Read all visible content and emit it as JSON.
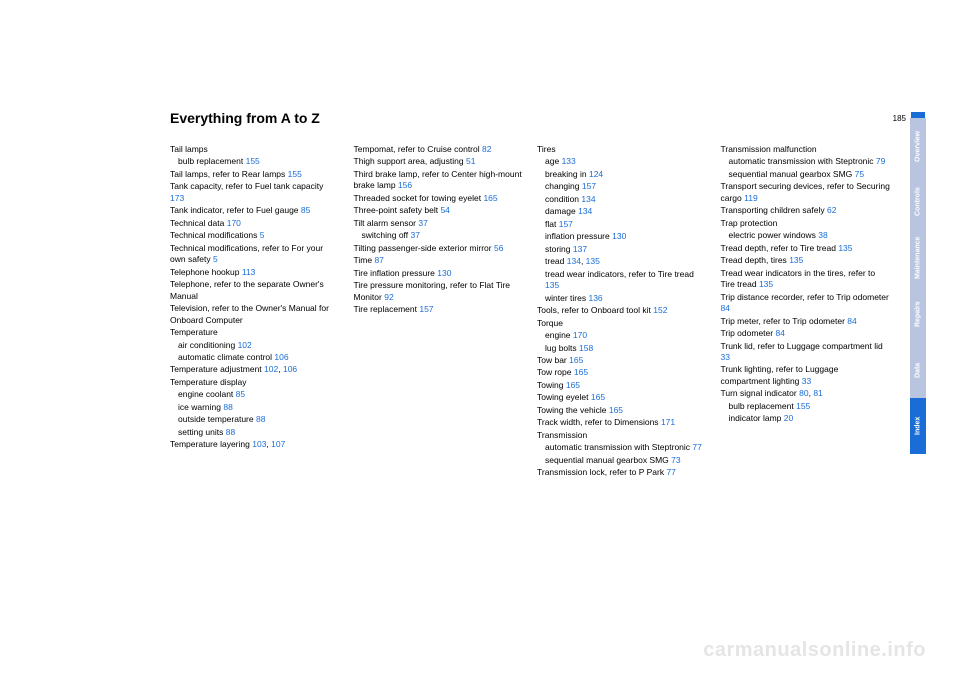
{
  "heading": "Everything from A to Z",
  "pageNumber": "185",
  "watermark": "carmanualsonline.info",
  "sideTabs": [
    {
      "label": "Overview",
      "active": false
    },
    {
      "label": "Controls",
      "active": false
    },
    {
      "label": "Maintenance",
      "active": false
    },
    {
      "label": "Repairs",
      "active": false
    },
    {
      "label": "Data",
      "active": false
    },
    {
      "label": "Index",
      "active": true
    }
  ],
  "columns": [
    [
      {
        "t": "Tail lamps"
      },
      {
        "t": "bulb replacement",
        "r": "155",
        "sub": true
      },
      {
        "t": "Tail lamps, refer to Rear lamps",
        "r": "155"
      },
      {
        "t": "Tank capacity, refer to Fuel tank capacity",
        "r": "173"
      },
      {
        "t": "Tank indicator, refer to Fuel gauge",
        "r": "85"
      },
      {
        "t": "Technical data",
        "r": "170"
      },
      {
        "t": "Technical modifications",
        "r": "5"
      },
      {
        "t": "Technical modifications, refer to For your own safety",
        "r": "5"
      },
      {
        "t": "Telephone hookup",
        "r": "113"
      },
      {
        "t": "Telephone, refer to the separate Owner's Manual"
      },
      {
        "t": "Television, refer to the Owner's Manual for Onboard Computer"
      },
      {
        "t": "Temperature"
      },
      {
        "t": "air conditioning",
        "r": "102",
        "sub": true
      },
      {
        "t": "automatic climate control",
        "r": "106",
        "sub": true
      },
      {
        "t": "Temperature adjustment",
        "r": "102, 106"
      },
      {
        "t": "Temperature display"
      },
      {
        "t": "engine coolant",
        "r": "85",
        "sub": true
      },
      {
        "t": "ice warning",
        "r": "88",
        "sub": true
      },
      {
        "t": "outside temperature",
        "r": "88",
        "sub": true
      },
      {
        "t": "setting units",
        "r": "88",
        "sub": true
      },
      {
        "t": "Temperature layering",
        "r": "103, 107"
      }
    ],
    [
      {
        "t": "Tempomat, refer to Cruise control",
        "r": "82"
      },
      {
        "t": "Thigh support area, adjusting",
        "r": "51"
      },
      {
        "t": "Third brake lamp, refer to Center high-mount brake lamp",
        "r": "156"
      },
      {
        "t": "Threaded socket for towing eyelet",
        "r": "165"
      },
      {
        "t": "Three-point safety belt",
        "r": "54"
      },
      {
        "t": "Tilt alarm sensor",
        "r": "37"
      },
      {
        "t": "switching off",
        "r": "37",
        "sub": true
      },
      {
        "t": "Tilting passenger-side exterior mirror",
        "r": "56"
      },
      {
        "t": "Time",
        "r": "87"
      },
      {
        "t": "Tire inflation pressure",
        "r": "130"
      },
      {
        "t": "Tire pressure monitoring, refer to Flat Tire Monitor",
        "r": "92"
      },
      {
        "t": "Tire replacement",
        "r": "157"
      }
    ],
    [
      {
        "t": "Tires"
      },
      {
        "t": "age",
        "r": "133",
        "sub": true
      },
      {
        "t": "breaking in",
        "r": "124",
        "sub": true
      },
      {
        "t": "changing",
        "r": "157",
        "sub": true
      },
      {
        "t": "condition",
        "r": "134",
        "sub": true
      },
      {
        "t": "damage",
        "r": "134",
        "sub": true
      },
      {
        "t": "flat",
        "r": "157",
        "sub": true
      },
      {
        "t": "inflation pressure",
        "r": "130",
        "sub": true
      },
      {
        "t": "storing",
        "r": "137",
        "sub": true
      },
      {
        "t": "tread",
        "r": "134, 135",
        "sub": true
      },
      {
        "t": "tread wear indicators, refer to Tire tread",
        "r": "135",
        "sub": true
      },
      {
        "t": "winter tires",
        "r": "136",
        "sub": true
      },
      {
        "t": "Tools, refer to Onboard tool kit",
        "r": "152"
      },
      {
        "t": "Torque"
      },
      {
        "t": "engine",
        "r": "170",
        "sub": true
      },
      {
        "t": "lug bolts",
        "r": "158",
        "sub": true
      },
      {
        "t": "Tow bar",
        "r": "165"
      },
      {
        "t": "Tow rope",
        "r": "165"
      },
      {
        "t": "Towing",
        "r": "165"
      },
      {
        "t": "Towing eyelet",
        "r": "165"
      },
      {
        "t": "Towing the vehicle",
        "r": "165"
      },
      {
        "t": "Track width, refer to Dimensions",
        "r": "171"
      },
      {
        "t": "Transmission"
      },
      {
        "t": "automatic transmission with Steptronic",
        "r": "77",
        "sub": true
      },
      {
        "t": "sequential manual gearbox SMG",
        "r": "73",
        "sub": true
      },
      {
        "t": "Transmission lock, refer to P Park",
        "r": "77"
      }
    ],
    [
      {
        "t": "Transmission malfunction"
      },
      {
        "t": "automatic transmission with Steptronic",
        "r": "79",
        "sub": true
      },
      {
        "t": "sequential manual gearbox SMG",
        "r": "75",
        "sub": true
      },
      {
        "t": "Transport securing devices, refer to Securing cargo",
        "r": "119"
      },
      {
        "t": "Transporting children safely",
        "r": "62"
      },
      {
        "t": "Trap protection"
      },
      {
        "t": "electric power windows",
        "r": "38",
        "sub": true
      },
      {
        "t": "Tread depth, refer to Tire tread",
        "r": "135"
      },
      {
        "t": "Tread depth, tires",
        "r": "135"
      },
      {
        "t": "Tread wear indicators in the tires, refer to Tire tread",
        "r": "135"
      },
      {
        "t": "Trip distance recorder, refer to Trip odometer",
        "r": "84"
      },
      {
        "t": "Trip meter, refer to Trip odometer",
        "r": "84"
      },
      {
        "t": "Trip odometer",
        "r": "84"
      },
      {
        "t": "Trunk lid, refer to Luggage compartment lid",
        "r": "33"
      },
      {
        "t": "Trunk lighting, refer to Luggage compartment lighting",
        "r": "33"
      },
      {
        "t": "Turn signal indicator",
        "r": "80, 81"
      },
      {
        "t": "bulb replacement",
        "r": "155",
        "sub": true
      },
      {
        "t": "indicator lamp",
        "r": "20",
        "sub": true
      }
    ]
  ]
}
